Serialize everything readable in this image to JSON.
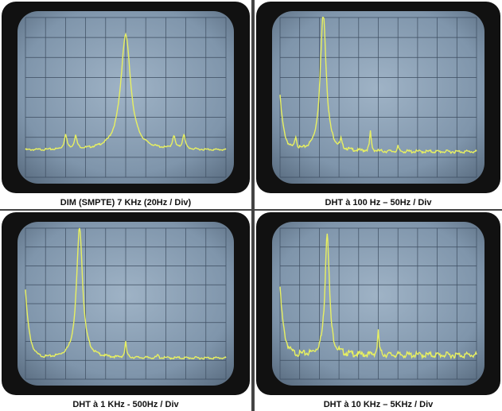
{
  "panels": [
    {
      "caption": "DIM (SMPTE)  7 KHz  (20Hz / Div)"
    },
    {
      "caption": "DHT à 100 Hz – 50Hz / Div"
    },
    {
      "caption": "DHT à 1 KHz - 500Hz / Div"
    },
    {
      "caption": "DHT à 10 KHz – 5KHz / Div"
    }
  ]
}
